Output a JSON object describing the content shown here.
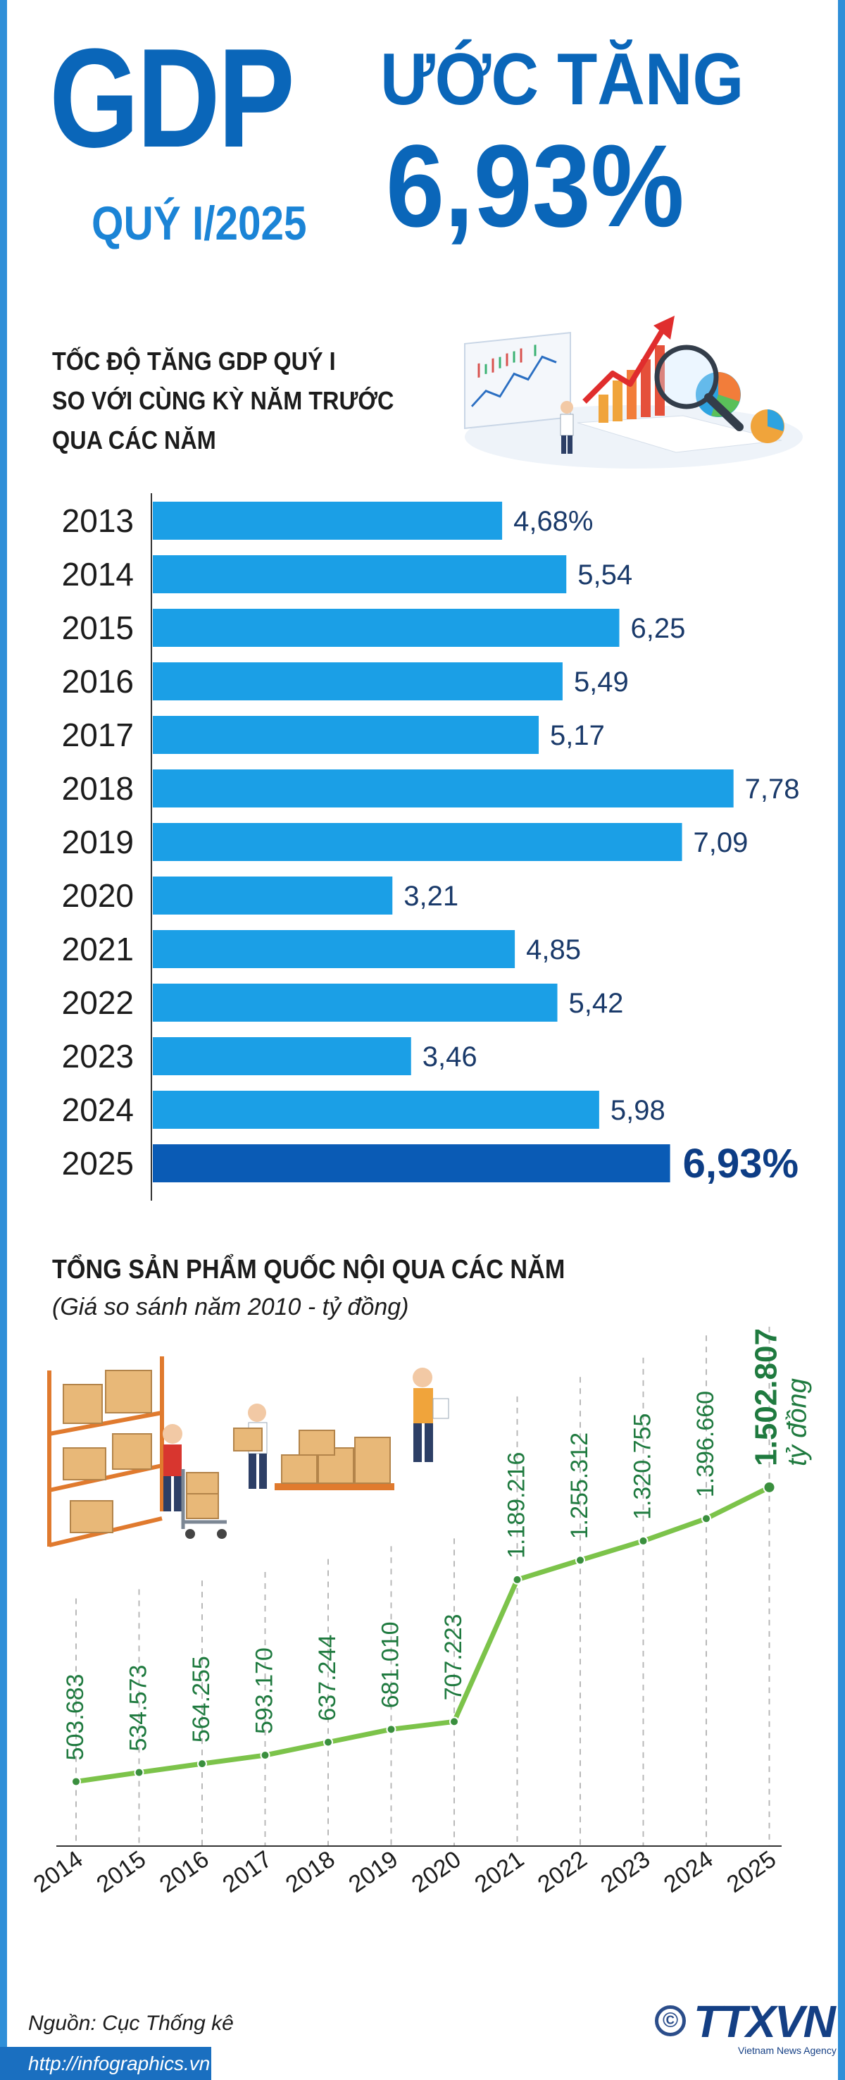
{
  "header": {
    "gdp": "GDP",
    "quarter": "QUÝ I/2025",
    "headline": "ƯỚC TĂNG",
    "value": "6,93%"
  },
  "section1": {
    "title_lines": [
      "TỐC ĐỘ TĂNG GDP QUÝ I",
      "SO VỚI CÙNG KỲ NĂM TRƯỚC",
      "QUA CÁC NĂM"
    ]
  },
  "section2": {
    "title": "TỔNG SẢN PHẨM QUỐC NỘI QUA CÁC NĂM",
    "subtitle": "(Giá so sánh năm 2010 - tỷ đồng)"
  },
  "footer": {
    "source": "Nguồn: Cục Thống kê",
    "website": "http://infographics.vn",
    "logo": "TTXVN",
    "logo_sub": "Vietnam News Agency",
    "copyright": "©"
  },
  "colors": {
    "bar": "#1b9fe6",
    "bar_highlight": "#0a5bb5",
    "line": "#7cc34a",
    "point": "#3a8f3e",
    "label_green": "#1f7a3f",
    "brand_blue": "#0a66b9"
  },
  "chart_data": [
    {
      "type": "bar",
      "orientation": "horizontal",
      "categories": [
        "2013",
        "2014",
        "2015",
        "2016",
        "2017",
        "2018",
        "2019",
        "2020",
        "2021",
        "2022",
        "2023",
        "2024",
        "2025"
      ],
      "values": [
        4.68,
        5.54,
        6.25,
        5.49,
        5.17,
        7.78,
        7.09,
        3.21,
        4.85,
        5.42,
        3.46,
        5.98,
        6.93
      ],
      "labels": [
        "4,68%",
        "5,54",
        "6,25",
        "5,49",
        "5,17",
        "7,78",
        "7,09",
        "3,21",
        "4,85",
        "5,42",
        "3,46",
        "5,98",
        "6,93%"
      ],
      "highlight_index": 12
    },
    {
      "type": "line",
      "title": "TỔNG SẢN PHẨM QUỐC NỘI QUA CÁC NĂM",
      "subtitle": "(Giá so sánh năm 2010 - tỷ đồng)",
      "x": [
        "2014",
        "2015",
        "2016",
        "2017",
        "2018",
        "2019",
        "2020",
        "2021",
        "2022",
        "2023",
        "2024",
        "2025"
      ],
      "values": [
        503683,
        534573,
        564255,
        593170,
        637244,
        681010,
        707223,
        1189216,
        1255312,
        1320755,
        1396660,
        1502807
      ],
      "labels": [
        "503.683",
        "534.573",
        "564.255",
        "593.170",
        "637.244",
        "681.010",
        "707.223",
        "1.189.216",
        "1.255.312",
        "1.320.755",
        "1.396.660",
        "1.502.807"
      ],
      "unit": "tỷ đồng",
      "grid": "vertical dashed"
    }
  ]
}
